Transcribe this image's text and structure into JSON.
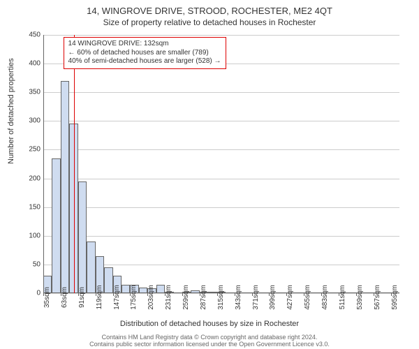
{
  "titles": {
    "main": "14, WINGROVE DRIVE, STROOD, ROCHESTER, ME2 4QT",
    "sub": "Size of property relative to detached houses in Rochester"
  },
  "axes": {
    "ylabel": "Number of detached properties",
    "xlabel": "Distribution of detached houses by size in Rochester",
    "ymax": 450,
    "ytick_step": 50,
    "xticks": [
      "35sqm",
      "63sqm",
      "91sqm",
      "119sqm",
      "147sqm",
      "175sqm",
      "203sqm",
      "231sqm",
      "259sqm",
      "287sqm",
      "315sqm",
      "343sqm",
      "371sqm",
      "399sqm",
      "427sqm",
      "455sqm",
      "483sqm",
      "511sqm",
      "539sqm",
      "567sqm",
      "595sqm"
    ]
  },
  "chart": {
    "type": "histogram",
    "bar_color": "#cfdcf0",
    "bar_border": "#666",
    "grid_color": "#ccc",
    "background": "#ffffff",
    "marker_color": "#d00",
    "values": [
      30,
      235,
      370,
      295,
      195,
      90,
      65,
      45,
      30,
      15,
      15,
      10,
      8,
      15,
      2,
      0,
      2,
      5,
      3,
      2,
      2,
      0,
      0,
      0,
      0,
      0,
      0,
      0,
      0,
      0,
      0,
      0,
      0,
      0,
      0,
      0,
      0,
      0,
      0,
      0,
      0
    ],
    "marker_index": 3.5
  },
  "annotation": {
    "line1": "14 WINGROVE DRIVE: 132sqm",
    "line2": "← 60% of detached houses are smaller (789)",
    "line3": "40% of semi-detached houses are larger (528) →"
  },
  "license": {
    "line1": "Contains HM Land Registry data © Crown copyright and database right 2024.",
    "line2": "Contains public sector information licensed under the Open Government Licence v3.0."
  }
}
